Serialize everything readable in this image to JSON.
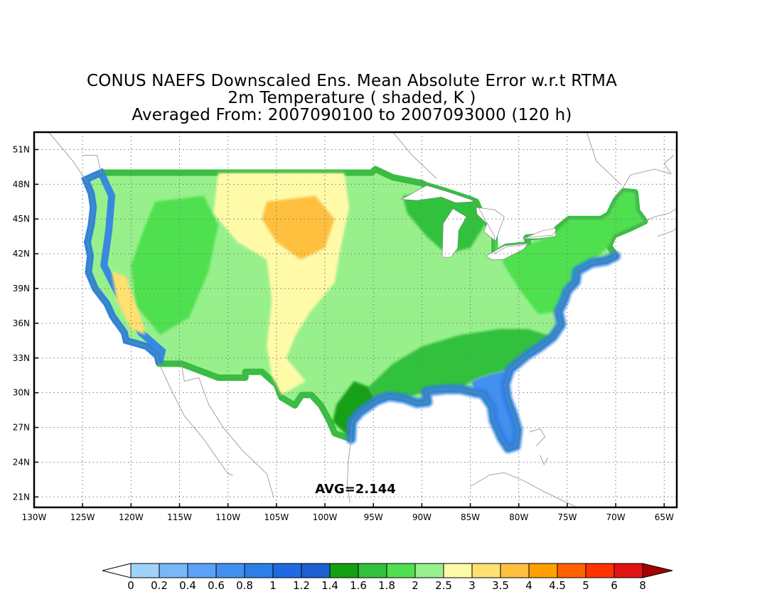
{
  "title": {
    "line1": "CONUS NAEFS Downscaled Ens. Mean Absolute Error w.r.t RTMA",
    "line2": "2m Temperature ( shaded, K )",
    "line3": "Averaged From: 2007090100 to 2007093000 (120 h)"
  },
  "map": {
    "lon_ticks": [
      "130W",
      "125W",
      "120W",
      "115W",
      "110W",
      "105W",
      "100W",
      "95W",
      "90W",
      "85W",
      "80W",
      "75W",
      "70W",
      "65W"
    ],
    "lon_values": [
      -130,
      -125,
      -120,
      -115,
      -110,
      -105,
      -100,
      -95,
      -90,
      -85,
      -80,
      -75,
      -70,
      -65
    ],
    "lat_ticks": [
      "21N",
      "24N",
      "27N",
      "30N",
      "33N",
      "36N",
      "39N",
      "42N",
      "45N",
      "48N",
      "51N"
    ],
    "lat_values": [
      21,
      24,
      27,
      30,
      33,
      36,
      39,
      42,
      45,
      48,
      51
    ],
    "lon_range": [
      -130,
      -63.7
    ],
    "lat_range": [
      20.1,
      52.5
    ],
    "gridlines": "dotted",
    "avg_label": "AVG=2.144"
  },
  "colorbar": {
    "labels": [
      "0",
      "0.2",
      "0.4",
      "0.6",
      "0.8",
      "1",
      "1.2",
      "1.4",
      "1.6",
      "1.8",
      "2",
      "2.5",
      "3",
      "3.5",
      "4",
      "4.5",
      "5",
      "6",
      "8"
    ],
    "colors": [
      "#a0d2fa",
      "#78b8f8",
      "#5aa2f5",
      "#4390f0",
      "#2e7ee8",
      "#1f6ae0",
      "#1e5fd0",
      "#14a014",
      "#33c13d",
      "#4fe050",
      "#98f08c",
      "#fffaa8",
      "#ffe070",
      "#ffc040",
      "#ffa000",
      "#ff6000",
      "#ff3200",
      "#e11414",
      "#a50000"
    ],
    "under_color": "#ffffff",
    "over_color": "#a50000"
  }
}
